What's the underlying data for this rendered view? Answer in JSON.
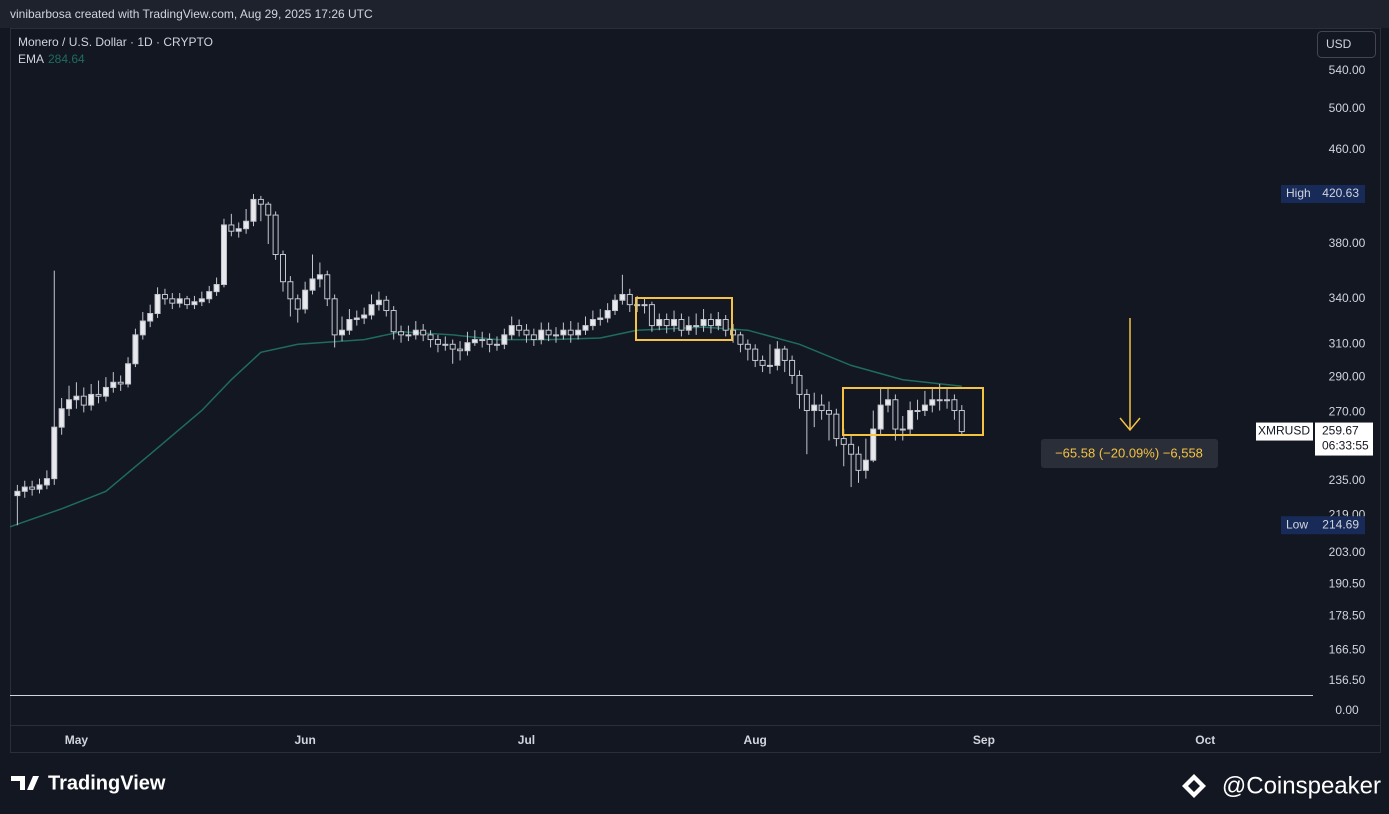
{
  "header": {
    "attribution": "vinibarbosa created with TradingView.com, Aug 29, 2025 17:26 UTC"
  },
  "chart_data": {
    "type": "candlestick",
    "title": "Monero / U.S. Dollar · 1D · CRYPTO",
    "open": [
      228,
      230,
      232,
      231,
      233,
      236,
      262,
      272,
      277,
      279,
      274,
      280,
      279,
      284,
      287,
      286,
      298,
      316,
      325,
      330,
      343,
      340,
      337,
      340,
      336,
      338,
      340,
      345,
      350,
      395,
      390,
      392,
      398,
      416,
      412,
      403,
      372,
      352,
      340,
      333,
      346,
      354,
      357,
      340,
      316,
      319,
      326,
      327,
      329,
      336,
      339,
      332,
      318,
      316,
      316,
      319,
      316,
      313,
      310,
      310,
      307,
      306,
      311,
      313,
      313,
      310,
      310,
      316,
      322,
      319,
      316,
      313,
      319,
      316,
      316,
      319,
      316,
      319,
      322,
      326,
      327,
      332,
      339,
      343,
      336,
      336,
      336,
      322,
      326,
      322,
      326,
      319,
      322,
      322,
      326,
      322,
      326,
      319,
      316,
      310,
      307,
      300,
      297,
      297,
      307,
      300,
      291,
      280,
      271,
      274,
      271,
      269,
      256,
      253,
      248,
      240,
      245,
      261,
      274,
      277,
      261,
      261,
      271,
      271,
      274,
      277,
      277,
      277,
      271
    ],
    "high": [
      233,
      235,
      235,
      236,
      240,
      360,
      278,
      285,
      287,
      284,
      286,
      288,
      290,
      293,
      291,
      302,
      320,
      331,
      336,
      348,
      347,
      344,
      344,
      342,
      342,
      345,
      349,
      355,
      400,
      404,
      397,
      408,
      420.63,
      419,
      414,
      406,
      375,
      356,
      343,
      352,
      372,
      366,
      360,
      343,
      328,
      333,
      332,
      334,
      343,
      345,
      342,
      335,
      322,
      322,
      325,
      323,
      319,
      316,
      315,
      313,
      312,
      318,
      319,
      318,
      317,
      315,
      320,
      328,
      326,
      323,
      320,
      324,
      324,
      321,
      324,
      325,
      324,
      328,
      332,
      333,
      337,
      343,
      357,
      347,
      342,
      341,
      338,
      330,
      330,
      332,
      330,
      328,
      330,
      333,
      330,
      331,
      329,
      323,
      318,
      313,
      310,
      303,
      310,
      312,
      309,
      303,
      294,
      283,
      281,
      280,
      276,
      272,
      261,
      258,
      252,
      256,
      271,
      284,
      284,
      280,
      268,
      276,
      277,
      282,
      284,
      286,
      284,
      280,
      274
    ],
    "low": [
      214.69,
      227,
      228,
      229,
      231,
      233,
      258,
      268,
      272,
      270,
      271,
      275,
      276,
      281,
      282,
      284,
      296,
      313,
      321,
      327,
      336,
      333,
      334,
      333,
      333,
      335,
      337,
      342,
      348,
      386,
      385,
      388,
      394,
      398,
      380,
      368,
      345,
      328,
      324,
      330,
      343,
      348,
      335,
      308,
      312,
      316,
      322,
      323,
      326,
      332,
      328,
      313,
      311,
      312,
      313,
      312,
      308,
      305,
      306,
      298,
      300,
      303,
      309,
      308,
      305,
      306,
      307,
      313,
      315,
      311,
      309,
      310,
      312,
      311,
      313,
      311,
      313,
      316,
      319,
      322,
      324,
      329,
      336,
      331,
      331,
      330,
      318,
      319,
      317,
      318,
      315,
      316,
      316,
      318,
      317,
      319,
      315,
      311,
      305,
      300,
      296,
      293,
      292,
      294,
      293,
      286,
      272,
      248,
      262,
      266,
      255,
      252,
      242,
      232,
      234,
      236,
      244,
      258,
      270,
      255,
      255,
      258,
      266,
      268,
      270,
      271,
      272,
      266,
      258
    ],
    "close": [
      230,
      232,
      231,
      233,
      236,
      262,
      272,
      277,
      279,
      274,
      280,
      279,
      284,
      287,
      286,
      298,
      316,
      325,
      330,
      343,
      340,
      337,
      340,
      336,
      338,
      340,
      345,
      350,
      395,
      390,
      392,
      398,
      416,
      412,
      403,
      372,
      352,
      340,
      333,
      346,
      354,
      357,
      340,
      316,
      319,
      326,
      327,
      329,
      336,
      339,
      332,
      318,
      316,
      316,
      319,
      316,
      313,
      310,
      310,
      307,
      306,
      311,
      313,
      313,
      310,
      310,
      316,
      322,
      319,
      316,
      313,
      319,
      316,
      316,
      319,
      316,
      319,
      322,
      326,
      327,
      332,
      339,
      343,
      336,
      336,
      336,
      322,
      326,
      322,
      326,
      319,
      322,
      322,
      326,
      322,
      326,
      319,
      316,
      310,
      307,
      300,
      297,
      297,
      307,
      300,
      291,
      280,
      271,
      274,
      271,
      269,
      256,
      253,
      248,
      240,
      245,
      261,
      274,
      277,
      261,
      261,
      271,
      271,
      274,
      277,
      277,
      277,
      271,
      259.67
    ],
    "up_color": "#e8e9ec",
    "down_color": "#131722",
    "wick_color": "#c3c6ce",
    "xlim": [
      -1,
      175.6
    ],
    "xticks": [
      {
        "value": 8,
        "label": "May"
      },
      {
        "value": 39,
        "label": "Jun"
      },
      {
        "value": 69,
        "label": "Jul"
      },
      {
        "value": 100,
        "label": "Aug"
      },
      {
        "value": 131,
        "label": "Sep"
      },
      {
        "value": 161,
        "label": "Oct"
      }
    ],
    "ylim": [
      152.1,
      589.2
    ],
    "log_scale": true,
    "grid": false,
    "yticks": [
      {
        "value": 540,
        "label": "540.00"
      },
      {
        "value": 500,
        "label": "500.00"
      },
      {
        "value": 460,
        "label": "460.00"
      },
      {
        "value": 380,
        "label": "380.00"
      },
      {
        "value": 340,
        "label": "340.00"
      },
      {
        "value": 310,
        "label": "310.00"
      },
      {
        "value": 290,
        "label": "290.00"
      },
      {
        "value": 270,
        "label": "270.00"
      },
      {
        "value": 235,
        "label": "235.00"
      },
      {
        "value": 219,
        "label": "219.00"
      },
      {
        "value": 203,
        "label": "203.00"
      },
      {
        "value": 190.5,
        "label": "190.50"
      },
      {
        "value": 178.5,
        "label": "178.50"
      },
      {
        "value": 166.5,
        "label": "166.50"
      },
      {
        "value": 156.5,
        "label": "156.50"
      }
    ],
    "currency": "USD",
    "ema": {
      "name": "EMA",
      "color": "#1f6b5f",
      "last_value": 284.64,
      "x": [
        -1,
        6,
        12,
        18,
        25,
        29,
        33,
        38,
        47,
        52,
        59,
        65,
        72,
        79,
        84,
        93,
        99,
        106,
        113,
        120,
        128
      ],
      "values": [
        214,
        222,
        230,
        248,
        271,
        288.5,
        305,
        310,
        313,
        318,
        316,
        313,
        313,
        314,
        319,
        321,
        319,
        310,
        297,
        288.5,
        284.64
      ]
    },
    "high_marker": {
      "label": "High",
      "value": 420.63
    },
    "low_marker": {
      "label": "Low",
      "value": 214.69
    },
    "last_price": {
      "symbol": "XMRUSD",
      "value": 259.67,
      "countdown": "06:33:55"
    },
    "measurement": "−65.58 (−20.09%) −6,558",
    "lower_pane": {
      "yticks": [
        {
          "value": 0,
          "label": "0.00"
        }
      ]
    }
  },
  "footer": {
    "brand": "TradingView",
    "credit": "@Coinspeaker"
  }
}
